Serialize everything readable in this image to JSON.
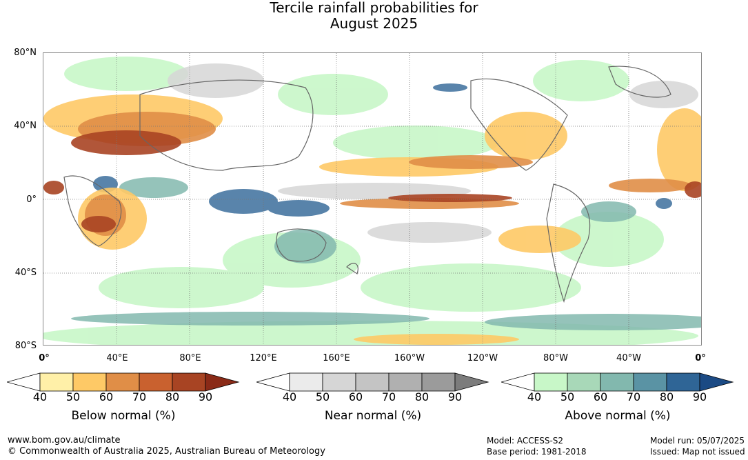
{
  "title_line1": "Tercile rainfall probabilities for",
  "title_line2": "August 2025",
  "lat_labels": [
    "80°N",
    "40°N",
    "0°",
    "40°S",
    "80°S"
  ],
  "lon_labels": [
    "0°",
    "40°E",
    "80°E",
    "120°E",
    "160°E",
    "160°W",
    "120°W",
    "80°W",
    "40°W",
    "0°"
  ],
  "colorbars": [
    {
      "name": "Below normal (%)",
      "colors": [
        "#fff0a8",
        "#fec966",
        "#e08e47",
        "#c9612f",
        "#a84423",
        "#8a2a17"
      ],
      "ticks": [
        "40",
        "50",
        "60",
        "70",
        "80",
        "90"
      ]
    },
    {
      "name": "Near normal (%)",
      "colors": [
        "#ebebeb",
        "#d6d6d6",
        "#c4c4c4",
        "#b0b0b0",
        "#9b9b9b",
        "#7c7c7c"
      ],
      "ticks": [
        "40",
        "50",
        "60",
        "70",
        "80",
        "90"
      ]
    },
    {
      "name": "Above normal (%)",
      "colors": [
        "#c8f7c8",
        "#a8d8b8",
        "#82b8ae",
        "#5a93a4",
        "#2f6596",
        "#1b4a84"
      ],
      "ticks": [
        "40",
        "50",
        "60",
        "70",
        "80",
        "90"
      ]
    }
  ],
  "footer": {
    "url": "www.bom.gov.au/climate",
    "copyright": "© Commonwealth of Australia 2025, Australian Bureau of Meteorology",
    "model": "Model: ACCESS-S2",
    "base_period": "Base period: 1981-2018",
    "model_run": "Model run: 05/07/2025",
    "issued": "Issued: Map not issued"
  }
}
